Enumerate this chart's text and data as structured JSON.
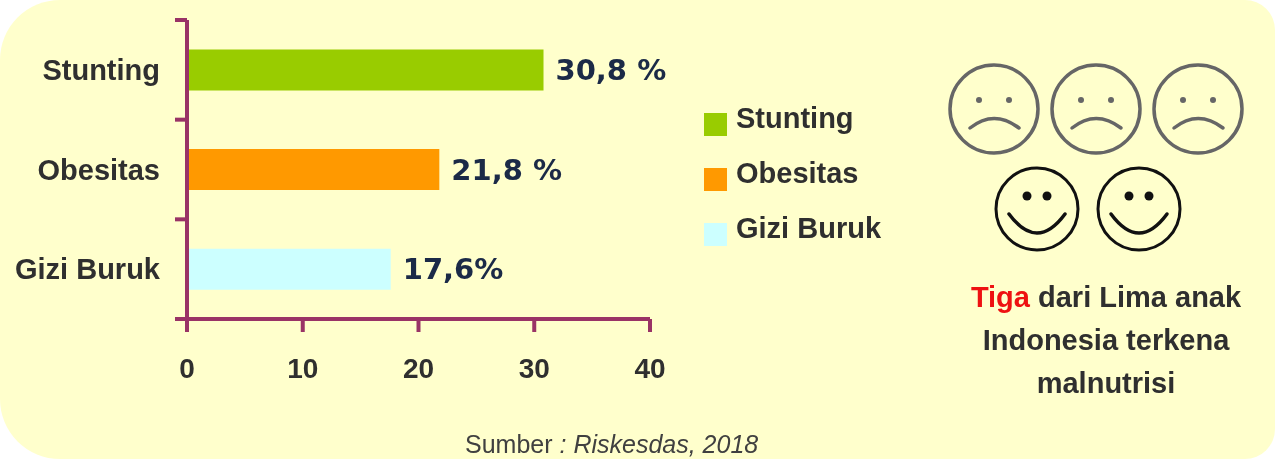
{
  "chart_data": {
    "type": "bar",
    "orientation": "horizontal",
    "stacked": true,
    "categories": [
      "Stunting",
      "Obesitas",
      "Gizi Buruk"
    ],
    "series": [
      {
        "name": "Stunting",
        "color": "#99cc00",
        "values": [
          30.8,
          null,
          null
        ],
        "value_labels": [
          "30,8 %",
          null,
          null
        ]
      },
      {
        "name": "Obesitas",
        "color": "#ff9900",
        "values": [
          null,
          21.8,
          null
        ],
        "value_labels": [
          null,
          "21,8 %",
          null
        ]
      },
      {
        "name": "Gizi Buruk",
        "color": "#ccffff",
        "values": [
          null,
          null,
          17.6
        ],
        "value_labels": [
          null,
          null,
          "17,6%"
        ]
      }
    ],
    "xlim": [
      0,
      40
    ],
    "xticks": [
      0,
      10,
      20,
      30,
      40
    ],
    "legend": "right",
    "annotations": [
      "Tiga dari Lima anak Indonesia terkena malnutrisi",
      "Sumber : Riskesdas, 2018"
    ]
  }
}
